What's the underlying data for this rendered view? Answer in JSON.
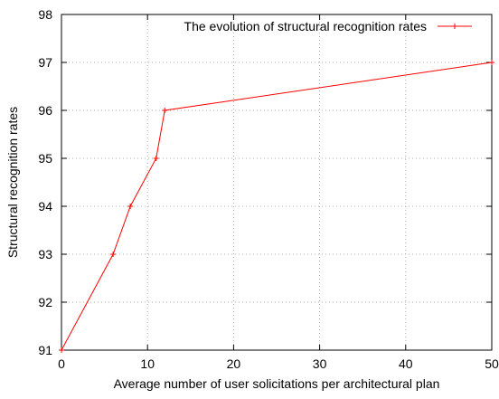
{
  "colors": {
    "series": "#ff0000",
    "grid": "#b0b0b0",
    "axis": "#000000"
  },
  "chart_data": {
    "type": "line",
    "title": "",
    "xlabel": "Average number of user solicitations per architectural plan",
    "ylabel": "Structural recognition rates",
    "xlim": [
      0,
      50
    ],
    "ylim": [
      91,
      98
    ],
    "xticks": [
      0,
      10,
      20,
      30,
      40,
      50
    ],
    "yticks": [
      91,
      92,
      93,
      94,
      95,
      96,
      97,
      98
    ],
    "grid": true,
    "legend_position": "top-right",
    "series": [
      {
        "name": "The evolution of structural recognition rates",
        "marker": "plus",
        "x": [
          0,
          6,
          8,
          11,
          12,
          50
        ],
        "y": [
          91,
          93,
          94,
          95,
          96,
          97
        ]
      }
    ]
  }
}
